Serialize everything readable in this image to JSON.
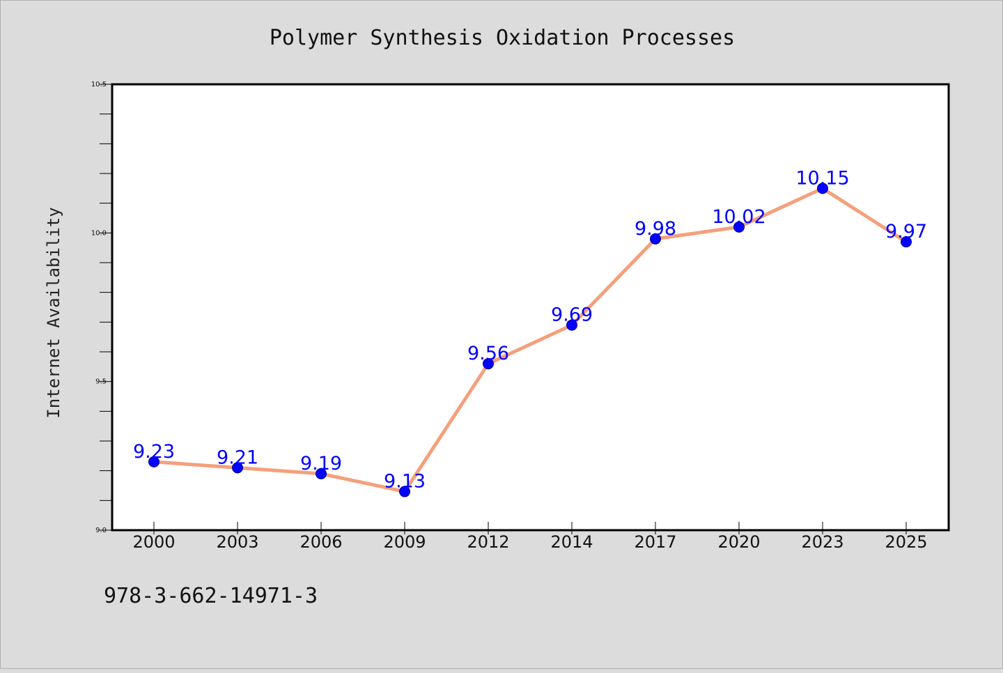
{
  "chart_data": {
    "type": "line",
    "title": "Polymer Synthesis Oxidation Processes",
    "xlabel": "",
    "ylabel": "Internet Availability",
    "categories": [
      "2000",
      "2003",
      "2006",
      "2009",
      "2012",
      "2014",
      "2017",
      "2020",
      "2023",
      "2025"
    ],
    "series": [
      {
        "values": [
          9.23,
          9.21,
          9.19,
          9.13,
          9.56,
          9.69,
          9.98,
          10.02,
          10.15,
          9.97
        ],
        "data_labels": [
          "9.23",
          "9.21",
          "9.19",
          "9.13",
          "9.56",
          "9.69",
          "9.98",
          "10.02",
          "10.15",
          "9.97"
        ]
      }
    ],
    "ylim": [
      9.0,
      10.5
    ],
    "yticks": [
      "9.0",
      "9.5",
      "10.0",
      "10.5"
    ],
    "grid": false,
    "colors": {
      "line": "#f4a07c",
      "marker": "#0000ff",
      "data_label": "#0000ff",
      "plot_background": "#ffffff",
      "figure_background": "#dcdcdc"
    }
  },
  "footer": {
    "isbn": "978-3-662-14971-3"
  }
}
